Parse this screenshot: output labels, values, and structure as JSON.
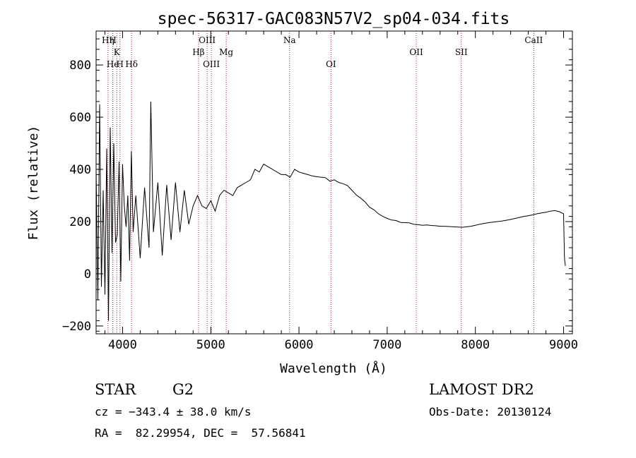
{
  "chart_data": {
    "type": "line",
    "title": "spec-56317-GAC083N57V2_sp04-034.fits",
    "xlabel": "Wavelength (Å)",
    "ylabel": "Flux (relative)",
    "xlim": [
      3700,
      9100
    ],
    "ylim": [
      -230,
      930
    ],
    "xticks": [
      4000,
      5000,
      6000,
      7000,
      8000,
      9000
    ],
    "yticks": [
      -200,
      0,
      200,
      400,
      600,
      800
    ],
    "grid": false,
    "legend": "none",
    "series": [
      {
        "color": "#000000",
        "x": [
          3700,
          3720,
          3740,
          3760,
          3780,
          3800,
          3820,
          3840,
          3860,
          3880,
          3900,
          3920,
          3940,
          3960,
          3980,
          4000,
          4020,
          4040,
          4060,
          4080,
          4100,
          4120,
          4150,
          4200,
          4250,
          4300,
          4320,
          4350,
          4400,
          4450,
          4500,
          4550,
          4600,
          4650,
          4700,
          4750,
          4800,
          4850,
          4900,
          4950,
          5000,
          5050,
          5100,
          5150,
          5200,
          5250,
          5300,
          5350,
          5400,
          5450,
          5500,
          5550,
          5600,
          5650,
          5700,
          5750,
          5800,
          5850,
          5900,
          5950,
          6000,
          6050,
          6100,
          6150,
          6200,
          6250,
          6300,
          6350,
          6400,
          6450,
          6500,
          6550,
          6600,
          6650,
          6700,
          6750,
          6800,
          6850,
          6900,
          6950,
          7000,
          7050,
          7100,
          7150,
          7200,
          7250,
          7300,
          7350,
          7400,
          7450,
          7500,
          7550,
          7600,
          7650,
          7700,
          7750,
          7800,
          7850,
          7900,
          7950,
          8000,
          8050,
          8100,
          8150,
          8200,
          8250,
          8300,
          8350,
          8400,
          8450,
          8500,
          8550,
          8600,
          8650,
          8700,
          8750,
          8800,
          8850,
          8900,
          8950,
          9000,
          9010,
          9020
        ],
        "y": [
          400,
          -100,
          650,
          -50,
          320,
          -80,
          480,
          -180,
          560,
          80,
          500,
          120,
          150,
          430,
          -30,
          420,
          260,
          180,
          300,
          50,
          470,
          160,
          300,
          60,
          330,
          100,
          660,
          160,
          350,
          70,
          340,
          130,
          350,
          160,
          320,
          190,
          260,
          300,
          260,
          250,
          280,
          240,
          300,
          320,
          310,
          300,
          330,
          340,
          350,
          360,
          400,
          390,
          420,
          410,
          400,
          390,
          380,
          380,
          370,
          400,
          390,
          385,
          380,
          375,
          372,
          370,
          368,
          355,
          360,
          350,
          345,
          338,
          320,
          302,
          290,
          275,
          255,
          245,
          230,
          220,
          212,
          206,
          204,
          197,
          196,
          195,
          190,
          188,
          186,
          187,
          185,
          184,
          182,
          182,
          181,
          180,
          179,
          178,
          180,
          182,
          186,
          190,
          193,
          196,
          198,
          200,
          202,
          205,
          208,
          212,
          216,
          220,
          222,
          226,
          230,
          233,
          236,
          240,
          242,
          238,
          230,
          60,
          30
        ]
      }
    ],
    "annotations": [
      {
        "label": "Hη",
        "x": 3835,
        "row": 1
      },
      {
        "label": "H",
        "x": 3889,
        "row": 1
      },
      {
        "label": "K",
        "x": 3934,
        "row": 2
      },
      {
        "label": "H",
        "x": 3970,
        "row": 3
      },
      {
        "label": "He",
        "x": 3889,
        "row": 3
      },
      {
        "label": "Hδ",
        "x": 4102,
        "row": 3
      },
      {
        "label": "OIII",
        "x": 4959,
        "row": 1
      },
      {
        "label": "Hβ",
        "x": 4861,
        "row": 2
      },
      {
        "label": "OIII",
        "x": 5007,
        "row": 3
      },
      {
        "label": "Mg",
        "x": 5175,
        "row": 2
      },
      {
        "label": "Na",
        "x": 5893,
        "row": 1
      },
      {
        "label": "OI",
        "x": 6363,
        "row": 3
      },
      {
        "label": "OII",
        "x": 7330,
        "row": 2
      },
      {
        "label": "SII",
        "x": 7840,
        "row": 2
      },
      {
        "label": "CaII",
        "x": 8662,
        "row": 1
      }
    ]
  },
  "info": {
    "class": "STAR",
    "subclass": "G2",
    "cz": "cz = −343.4 ± 38.0 km/s",
    "coords": "RA =  82.29954, DEC =  57.56841",
    "survey": "LAMOST DR2",
    "obsdate": "Obs-Date: 20130124"
  }
}
